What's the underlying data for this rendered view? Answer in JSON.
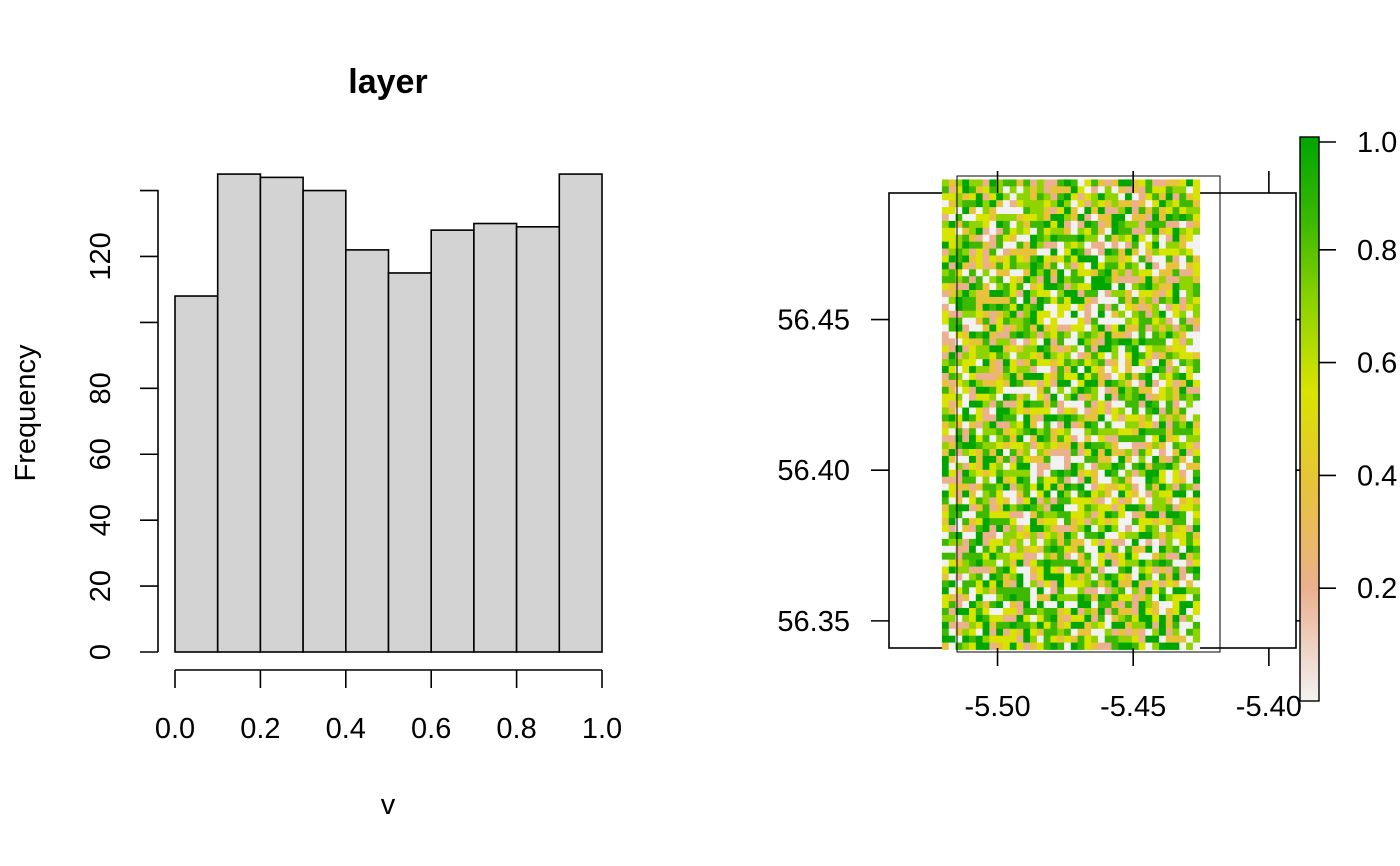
{
  "chart_data": [
    {
      "type": "bar",
      "title": "layer",
      "xlabel": "v",
      "ylabel": "Frequency",
      "bin_edges": [
        0.0,
        0.1,
        0.2,
        0.3,
        0.4,
        0.5,
        0.6,
        0.7,
        0.8,
        0.9,
        1.0
      ],
      "values": [
        108,
        145,
        144,
        140,
        122,
        115,
        128,
        130,
        129,
        145
      ],
      "xlim": [
        0,
        1
      ],
      "ylim": [
        0,
        140
      ],
      "x_ticks": [
        "0.0",
        "0.2",
        "0.4",
        "0.6",
        "0.8",
        "1.0"
      ],
      "y_ticks": [
        "0",
        "20",
        "40",
        "60",
        "80",
        "120"
      ],
      "bar_color": "#d3d3d3",
      "grid": false
    },
    {
      "type": "heatmap",
      "title": "",
      "xlabel": "",
      "ylabel": "",
      "xlim": [
        -5.54,
        -5.39
      ],
      "ylim": [
        56.341,
        56.492
      ],
      "raster_extent": {
        "xmin": -5.5205,
        "xmax": -5.4255,
        "ymin": 56.3405,
        "ymax": 56.4965
      },
      "x_ticks": [
        "-5.50",
        "-5.45",
        "-5.40"
      ],
      "y_ticks": [
        "56.35",
        "56.40",
        "56.45"
      ],
      "legend": {
        "placement": "right",
        "range": [
          0,
          1
        ],
        "tick_labels": [
          "0.2",
          "0.4",
          "0.6",
          "0.8",
          "1.0"
        ],
        "colors": [
          "#f2f2f2",
          "#ebb08e",
          "#e8c23b",
          "#d9e300",
          "#8fd400",
          "#3cb900",
          "#00a600"
        ]
      },
      "grid": false
    }
  ]
}
